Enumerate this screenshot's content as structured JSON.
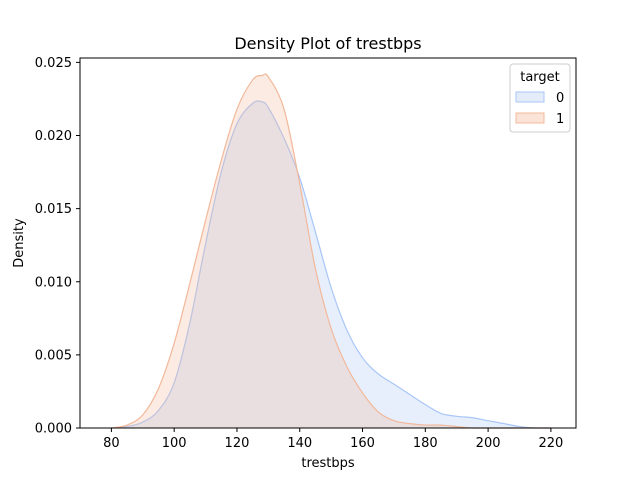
{
  "chart_data": {
    "type": "area",
    "title": "Density Plot of trestbps",
    "xlabel": "trestbps",
    "ylabel": "Density",
    "xlim": [
      70,
      228
    ],
    "ylim": [
      0,
      0.0253
    ],
    "xticks": [
      80,
      100,
      120,
      140,
      160,
      180,
      200,
      220
    ],
    "yticks": [
      0.0,
      0.005,
      0.01,
      0.015,
      0.02,
      0.025
    ],
    "ytick_labels": [
      "0.000",
      "0.005",
      "0.010",
      "0.015",
      "0.020",
      "0.025"
    ],
    "grid": false,
    "legend": {
      "title": "target",
      "placement": "top-right"
    },
    "x": [
      80,
      85,
      90,
      95,
      100,
      105,
      110,
      115,
      120,
      125,
      128,
      130,
      135,
      140,
      145,
      150,
      155,
      160,
      165,
      170,
      175,
      180,
      185,
      190,
      195,
      200,
      205,
      210,
      215,
      220
    ],
    "series": [
      {
        "name": "0",
        "color": "#a9c6f7",
        "fill": "#e4ecfa",
        "values": [
          0.0,
          0.0001,
          0.0004,
          0.0012,
          0.0031,
          0.0072,
          0.0126,
          0.0175,
          0.0208,
          0.0222,
          0.0223,
          0.0219,
          0.0198,
          0.0171,
          0.0134,
          0.0096,
          0.0067,
          0.0048,
          0.0037,
          0.003,
          0.0023,
          0.0016,
          0.001,
          0.0008,
          0.0007,
          0.0005,
          0.0003,
          0.0001,
          0.0,
          0.0
        ]
      },
      {
        "name": "1",
        "color": "#f2b89a",
        "fill": "#fbe3d8",
        "values": [
          0.0,
          0.0002,
          0.0009,
          0.0027,
          0.0058,
          0.0099,
          0.0142,
          0.0183,
          0.0218,
          0.0238,
          0.0241,
          0.024,
          0.0218,
          0.0167,
          0.0109,
          0.0068,
          0.0042,
          0.0024,
          0.0011,
          0.0005,
          0.0003,
          0.0002,
          0.0002,
          0.0001,
          0.0,
          0.0,
          0.0,
          0.0,
          0.0,
          0.0
        ]
      }
    ]
  }
}
